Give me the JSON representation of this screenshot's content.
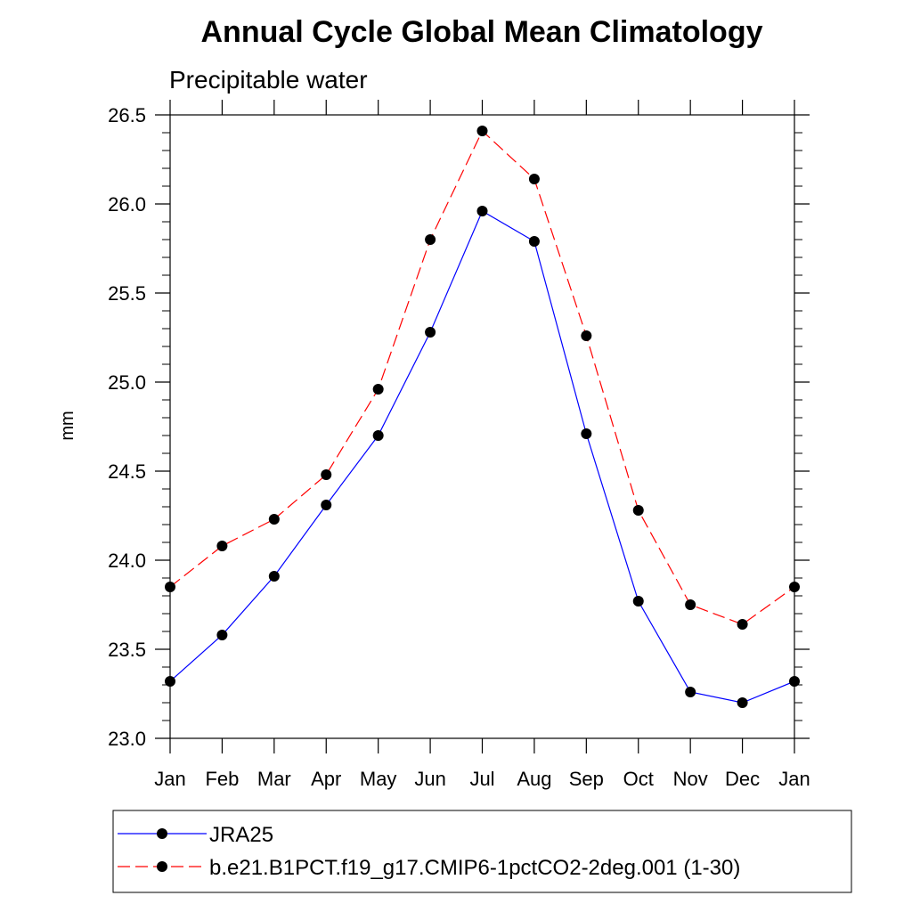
{
  "chart_data": {
    "type": "line",
    "title": "Annual Cycle Global Mean Climatology",
    "subtitle": "Precipitable water",
    "xlabel": "",
    "ylabel": "mm",
    "categories": [
      "Jan",
      "Feb",
      "Mar",
      "Apr",
      "May",
      "Jun",
      "Jul",
      "Aug",
      "Sep",
      "Oct",
      "Nov",
      "Dec",
      "Jan"
    ],
    "ylim": [
      23.0,
      26.5
    ],
    "yticks": [
      "23.0",
      "23.5",
      "24.0",
      "24.5",
      "25.0",
      "25.5",
      "26.0",
      "26.5"
    ],
    "ytick_values": [
      23.0,
      23.5,
      24.0,
      24.5,
      25.0,
      25.5,
      26.0,
      26.5
    ],
    "series": [
      {
        "name": "JRA25",
        "color": "#0000ff",
        "line_style": "solid",
        "values": [
          23.32,
          23.58,
          23.91,
          24.31,
          24.7,
          25.28,
          25.96,
          25.79,
          24.71,
          23.77,
          23.26,
          23.2,
          23.32
        ]
      },
      {
        "name": "b.e21.B1PCT.f19_g17.CMIP6-1pctCO2-2deg.001 (1-30)",
        "color": "#ff0000",
        "line_style": "dashed",
        "values": [
          23.85,
          24.08,
          24.23,
          24.48,
          24.96,
          25.8,
          26.41,
          26.14,
          25.26,
          24.28,
          23.75,
          23.64,
          23.85
        ]
      }
    ],
    "legend_position": "bottom"
  }
}
